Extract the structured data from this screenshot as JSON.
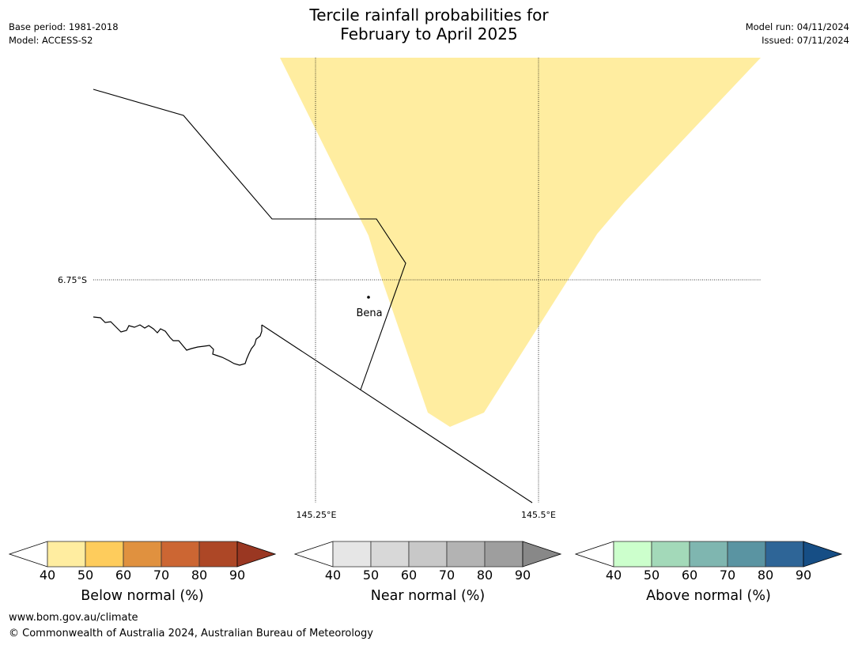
{
  "title_line1": "Tercile rainfall probabilities for",
  "title_line2": "February to April 2025",
  "base_period": "Base period: 1981-2018",
  "model": "Model: ACCESS-S2",
  "model_run": "Model run: 04/11/2024",
  "issued": "Issued: 07/11/2024",
  "map": {
    "lat_label": "6.75°S",
    "lon_labels": [
      "145.25°E",
      "145.5°E"
    ],
    "place_name": "Bena",
    "shade_color": "#ffeda0",
    "shade_meaning": "below normal 40-50%"
  },
  "colorbars": [
    {
      "label": "Below normal (%)",
      "ticks": [
        "40",
        "50",
        "60",
        "70",
        "80",
        "90"
      ],
      "colors": [
        "#ffeda0",
        "#fecc5c",
        "#e0913f",
        "#cc6633",
        "#ad4726",
        "#9a3722"
      ]
    },
    {
      "label": "Near normal (%)",
      "ticks": [
        "40",
        "50",
        "60",
        "70",
        "80",
        "90"
      ],
      "colors": [
        "#e6e6e6",
        "#d8d8d8",
        "#c8c8c8",
        "#b3b3b3",
        "#9e9e9e",
        "#888888"
      ]
    },
    {
      "label": "Above normal (%)",
      "ticks": [
        "40",
        "50",
        "60",
        "70",
        "80",
        "90"
      ],
      "colors": [
        "#ccffcc",
        "#a3d9b9",
        "#7fb6b0",
        "#5a94a2",
        "#2e6597",
        "#164e85"
      ]
    }
  ],
  "footer_url": "www.bom.gov.au/climate",
  "footer_copyright": "© Commonwealth of Australia 2024, Australian Bureau of Meteorology"
}
